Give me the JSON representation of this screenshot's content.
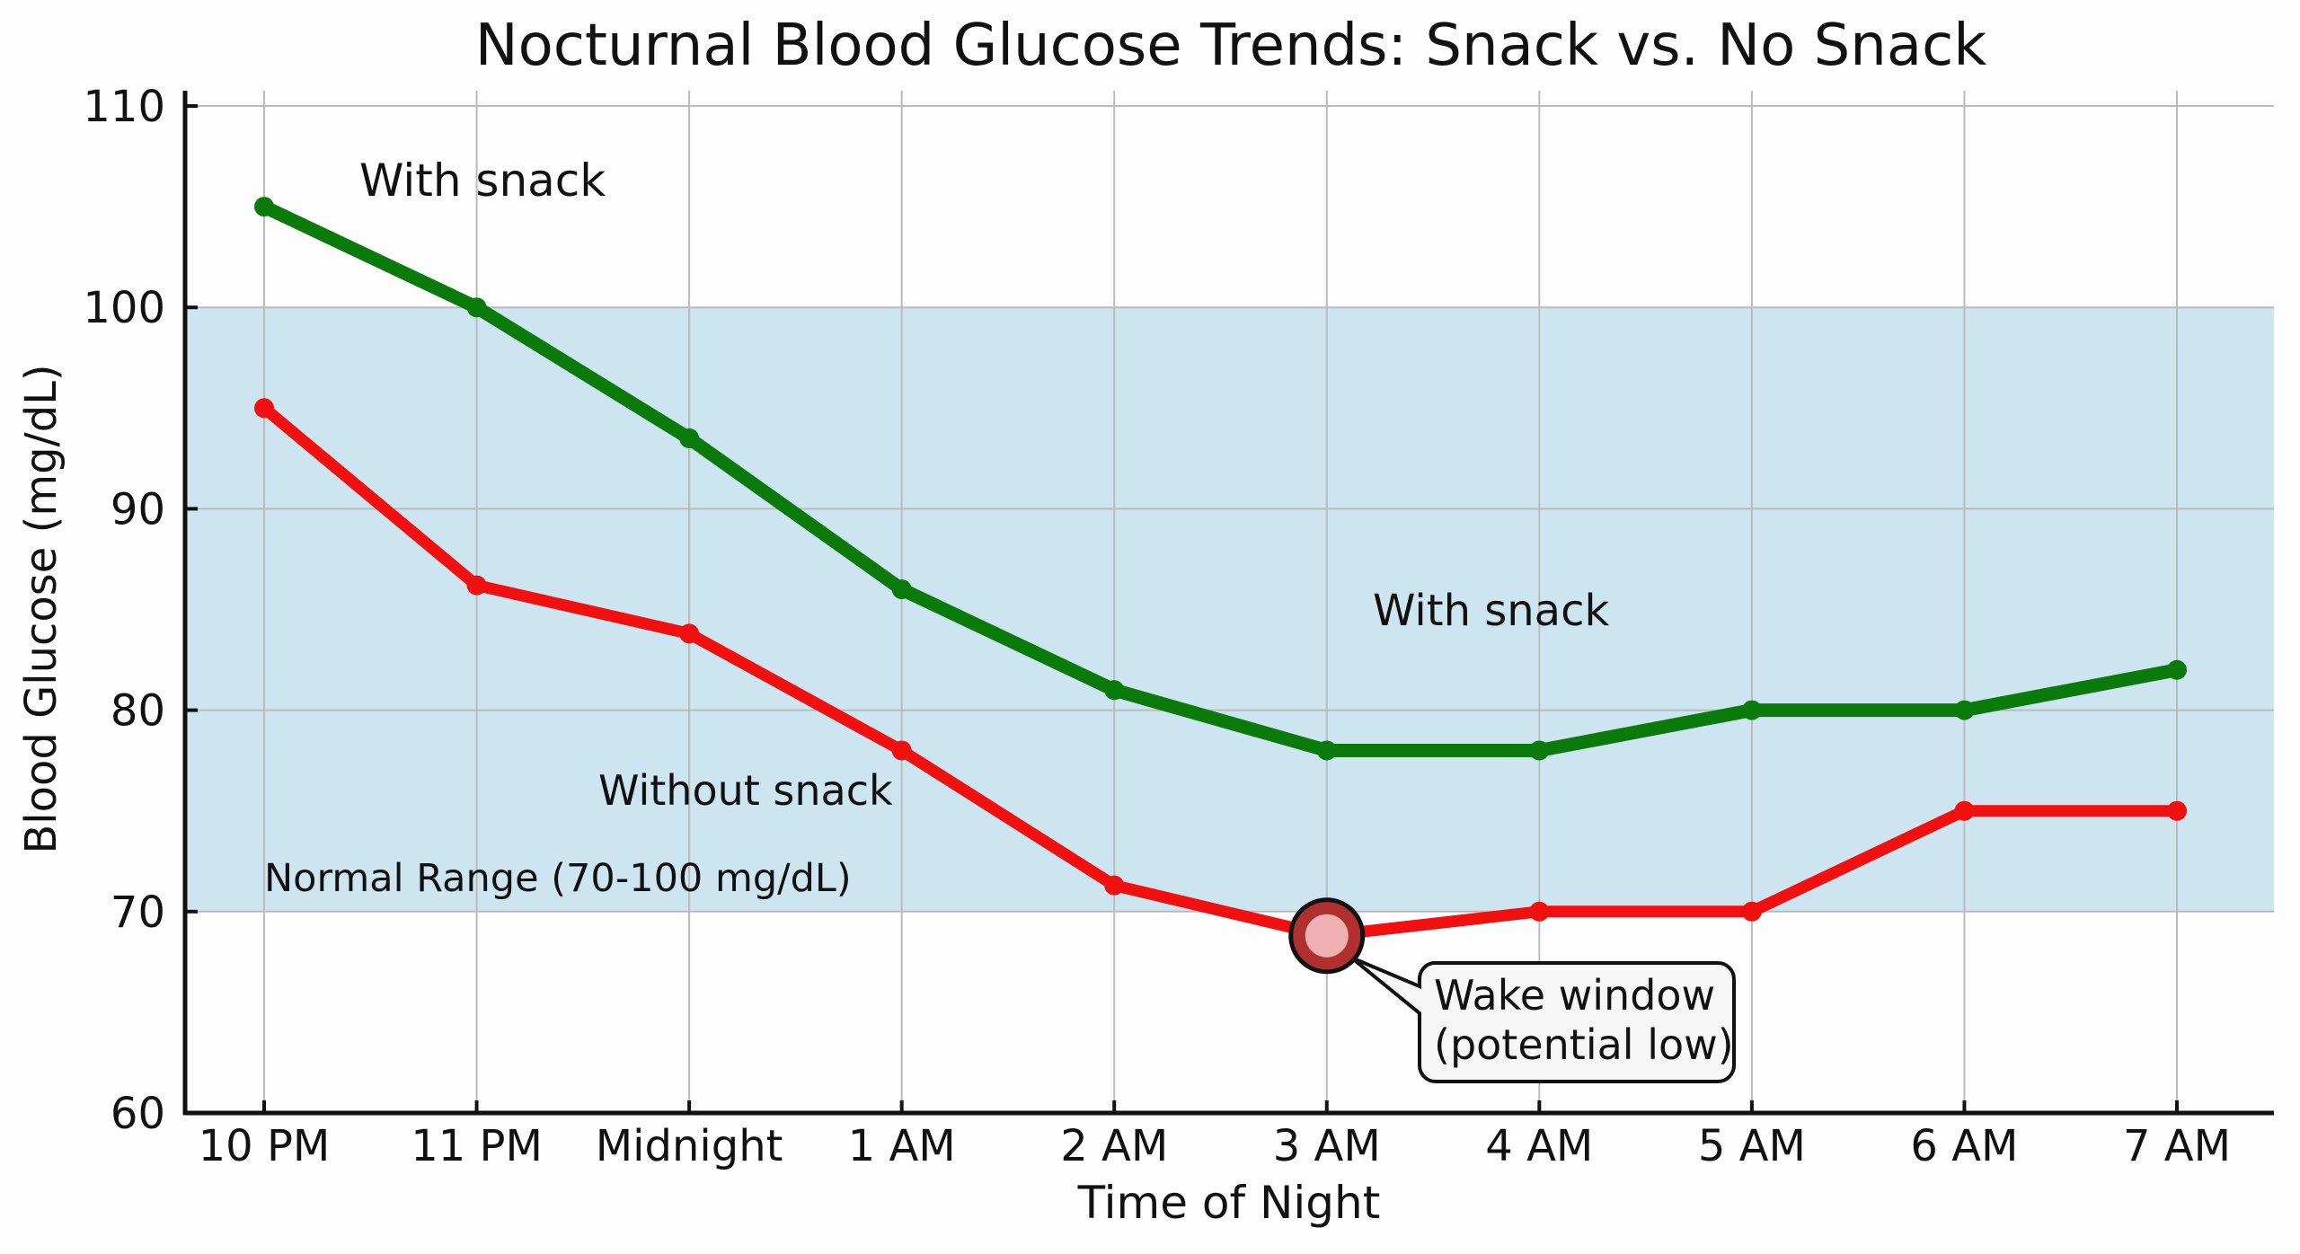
{
  "chart_data": {
    "type": "line",
    "title": "Nocturnal Blood Glucose Trends: Snack vs. No Snack",
    "xlabel": "Time of Night",
    "ylabel": "Blood Glucose (mg/dL)",
    "categories": [
      "10 PM",
      "11 PM",
      "Midnight",
      "1 AM",
      "2 AM",
      "3 AM",
      "4 AM",
      "5 AM",
      "6 AM",
      "7 AM"
    ],
    "ylim": [
      60,
      110
    ],
    "yticks": [
      60,
      70,
      80,
      90,
      100,
      110
    ],
    "grid": true,
    "series": [
      {
        "name": "With snack",
        "color": "#0a7a0a",
        "values": [
          105,
          100,
          93.5,
          86,
          81,
          78,
          78,
          80,
          80,
          82
        ]
      },
      {
        "name": "Without snack",
        "color": "#f01010",
        "values": [
          95,
          86.2,
          83.8,
          78,
          71.3,
          68.8,
          70,
          70,
          75,
          75
        ]
      }
    ],
    "band": {
      "label": "Normal Range (70-100 mg/dL)",
      "range": [
        70,
        100
      ],
      "color": "#cde5f0"
    },
    "annotations": {
      "with_snack_top": "With snack",
      "with_snack_mid": "With snack",
      "without_snack": "Without snack",
      "callout": [
        "Wake window",
        "(potential low)"
      ],
      "callout_point": {
        "x": "3 AM",
        "y": 68.8
      }
    }
  }
}
